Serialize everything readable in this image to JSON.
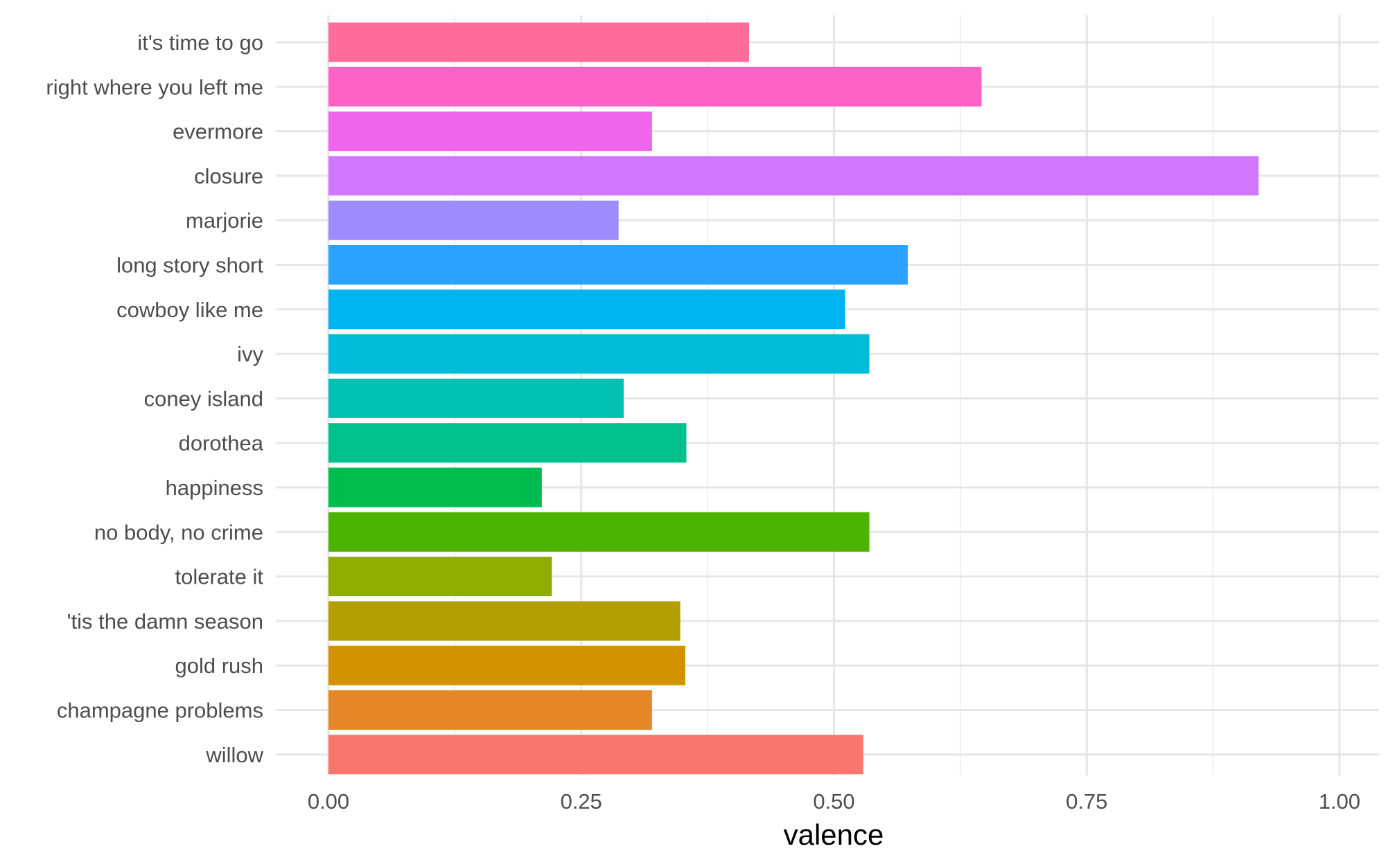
{
  "chart_data": {
    "type": "bar",
    "orientation": "horizontal",
    "xlabel": "valence",
    "ylabel": "",
    "xlim": [
      0,
      1
    ],
    "xticks": [
      "0.00",
      "0.25",
      "0.50",
      "0.75",
      "1.00"
    ],
    "xtick_values": [
      0,
      0.25,
      0.5,
      0.75,
      1.0
    ],
    "grid": true,
    "legend": "none",
    "categories": [
      "it's time to go",
      "right where you left me",
      "evermore",
      "closure",
      "marjorie",
      "long story short",
      "cowboy like me",
      "ivy",
      "coney island",
      "dorothea",
      "happiness",
      "no body, no crime",
      "tolerate it",
      "'tis the damn season",
      "gold rush",
      "champagne problems",
      "willow"
    ],
    "values": [
      0.416,
      0.646,
      0.32,
      0.92,
      0.287,
      0.573,
      0.511,
      0.535,
      0.292,
      0.354,
      0.211,
      0.535,
      0.221,
      0.348,
      0.353,
      0.32,
      0.529
    ],
    "colors": [
      "#FF6C9A",
      "#FF62C7",
      "#F066EA",
      "#D177FF",
      "#9E8CFF",
      "#2BA2FF",
      "#00B4EF",
      "#00BCD8",
      "#00C0B2",
      "#00C08B",
      "#00BB4D",
      "#4AB400",
      "#8EAD00",
      "#B49F00",
      "#D19300",
      "#E58726",
      "#F8766D"
    ]
  }
}
